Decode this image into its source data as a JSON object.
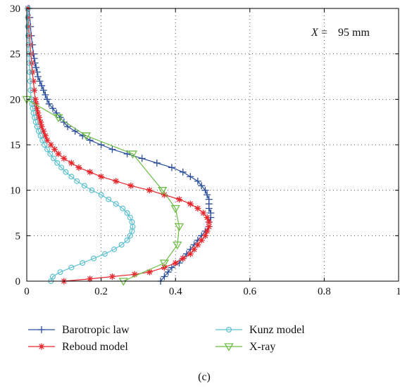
{
  "chart_data": {
    "type": "line",
    "title": "",
    "xlabel": "",
    "ylabel": "",
    "xlim": [
      0,
      1
    ],
    "ylim": [
      0,
      30
    ],
    "xticks": [
      "0",
      "0.2",
      "0.4",
      "0.6",
      "0.8",
      "1"
    ],
    "yticks": [
      "0",
      "5",
      "10",
      "15",
      "20",
      "25",
      "30"
    ],
    "grid": "dotted",
    "annotation": {
      "var": "X",
      "eq": "=",
      "value": "95 mm"
    },
    "caption": "(c)",
    "legend_position": "below",
    "series": [
      {
        "name": "Barotropic law",
        "color": "#2a4d9c",
        "marker": "plus",
        "points": [
          [
            0.36,
            0
          ],
          [
            0.37,
            0.5
          ],
          [
            0.38,
            1
          ],
          [
            0.39,
            1.5
          ],
          [
            0.41,
            2
          ],
          [
            0.42,
            2.5
          ],
          [
            0.43,
            3
          ],
          [
            0.44,
            3.5
          ],
          [
            0.45,
            4
          ],
          [
            0.46,
            4.5
          ],
          [
            0.47,
            5
          ],
          [
            0.48,
            5.5
          ],
          [
            0.49,
            6
          ],
          [
            0.49,
            6.5
          ],
          [
            0.495,
            7
          ],
          [
            0.495,
            7.5
          ],
          [
            0.49,
            8
          ],
          [
            0.49,
            8.5
          ],
          [
            0.49,
            9
          ],
          [
            0.485,
            9.5
          ],
          [
            0.48,
            10
          ],
          [
            0.47,
            10.5
          ],
          [
            0.46,
            11
          ],
          [
            0.44,
            11.5
          ],
          [
            0.42,
            12
          ],
          [
            0.39,
            12.5
          ],
          [
            0.35,
            13
          ],
          [
            0.31,
            13.5
          ],
          [
            0.27,
            14
          ],
          [
            0.23,
            14.5
          ],
          [
            0.2,
            15
          ],
          [
            0.17,
            15.5
          ],
          [
            0.15,
            16
          ],
          [
            0.13,
            16.5
          ],
          [
            0.11,
            17
          ],
          [
            0.1,
            17.5
          ],
          [
            0.09,
            18
          ],
          [
            0.08,
            18.5
          ],
          [
            0.07,
            19
          ],
          [
            0.06,
            19.5
          ],
          [
            0.055,
            20
          ],
          [
            0.05,
            20.5
          ],
          [
            0.045,
            21
          ],
          [
            0.04,
            21.5
          ],
          [
            0.035,
            22
          ],
          [
            0.03,
            22.5
          ],
          [
            0.028,
            23
          ],
          [
            0.025,
            23.5
          ],
          [
            0.022,
            24
          ],
          [
            0.02,
            24.5
          ],
          [
            0.018,
            25
          ],
          [
            0.015,
            26
          ],
          [
            0.012,
            27
          ],
          [
            0.01,
            28
          ],
          [
            0.008,
            29
          ],
          [
            0.006,
            30
          ]
        ]
      },
      {
        "name": "Reboud model",
        "color": "#e8262b",
        "marker": "star",
        "points": [
          [
            0.1,
            0
          ],
          [
            0.17,
            0.25
          ],
          [
            0.23,
            0.5
          ],
          [
            0.29,
            0.75
          ],
          [
            0.33,
            1
          ],
          [
            0.37,
            1.5
          ],
          [
            0.4,
            2
          ],
          [
            0.42,
            2.5
          ],
          [
            0.44,
            3
          ],
          [
            0.45,
            3.5
          ],
          [
            0.46,
            4
          ],
          [
            0.47,
            4.5
          ],
          [
            0.48,
            5
          ],
          [
            0.485,
            5.5
          ],
          [
            0.49,
            6
          ],
          [
            0.49,
            6.5
          ],
          [
            0.485,
            7
          ],
          [
            0.475,
            7.5
          ],
          [
            0.46,
            8
          ],
          [
            0.44,
            8.5
          ],
          [
            0.41,
            9
          ],
          [
            0.37,
            9.5
          ],
          [
            0.33,
            10
          ],
          [
            0.28,
            10.5
          ],
          [
            0.24,
            11
          ],
          [
            0.2,
            11.5
          ],
          [
            0.17,
            12
          ],
          [
            0.14,
            12.5
          ],
          [
            0.12,
            13
          ],
          [
            0.1,
            13.5
          ],
          [
            0.085,
            14
          ],
          [
            0.075,
            14.5
          ],
          [
            0.065,
            15
          ],
          [
            0.055,
            15.5
          ],
          [
            0.05,
            16
          ],
          [
            0.045,
            16.5
          ],
          [
            0.04,
            17
          ],
          [
            0.037,
            17.5
          ],
          [
            0.033,
            18
          ],
          [
            0.03,
            18.5
          ],
          [
            0.027,
            19
          ],
          [
            0.025,
            19.5
          ],
          [
            0.023,
            20
          ],
          [
            0.02,
            21
          ],
          [
            0.018,
            22
          ],
          [
            0.015,
            23
          ],
          [
            0.013,
            24
          ],
          [
            0.011,
            25
          ],
          [
            0.009,
            26
          ],
          [
            0.007,
            27
          ],
          [
            0.005,
            28
          ],
          [
            0.004,
            29
          ],
          [
            0.003,
            30
          ]
        ]
      },
      {
        "name": "Kunz model",
        "color": "#5bc0d0",
        "marker": "circle",
        "points": [
          [
            0.065,
            0
          ],
          [
            0.07,
            0.5
          ],
          [
            0.09,
            1
          ],
          [
            0.12,
            1.5
          ],
          [
            0.15,
            2
          ],
          [
            0.18,
            2.5
          ],
          [
            0.21,
            3
          ],
          [
            0.235,
            3.5
          ],
          [
            0.255,
            4
          ],
          [
            0.27,
            4.5
          ],
          [
            0.278,
            5
          ],
          [
            0.283,
            5.5
          ],
          [
            0.285,
            6
          ],
          [
            0.283,
            6.5
          ],
          [
            0.278,
            7
          ],
          [
            0.27,
            7.5
          ],
          [
            0.258,
            8
          ],
          [
            0.24,
            8.5
          ],
          [
            0.22,
            9
          ],
          [
            0.2,
            9.5
          ],
          [
            0.175,
            10
          ],
          [
            0.155,
            10.5
          ],
          [
            0.135,
            11
          ],
          [
            0.12,
            11.5
          ],
          [
            0.105,
            12
          ],
          [
            0.093,
            12.5
          ],
          [
            0.082,
            13
          ],
          [
            0.072,
            13.5
          ],
          [
            0.063,
            14
          ],
          [
            0.055,
            14.5
          ],
          [
            0.048,
            15
          ],
          [
            0.042,
            15.5
          ],
          [
            0.037,
            16
          ],
          [
            0.032,
            16.5
          ],
          [
            0.028,
            17
          ],
          [
            0.024,
            17.5
          ],
          [
            0.021,
            18
          ],
          [
            0.018,
            18.5
          ],
          [
            0.016,
            19
          ],
          [
            0.014,
            19.5
          ],
          [
            0.012,
            20
          ],
          [
            0.01,
            21
          ],
          [
            0.009,
            22
          ],
          [
            0.008,
            23
          ],
          [
            0.007,
            24
          ],
          [
            0.006,
            25
          ],
          [
            0.005,
            26
          ],
          [
            0.004,
            27
          ],
          [
            0.003,
            28
          ],
          [
            0.003,
            29
          ],
          [
            0.003,
            30
          ]
        ]
      },
      {
        "name": "X-ray",
        "color": "#6dbd45",
        "marker": "triangle-down",
        "points": [
          [
            0.26,
            0
          ],
          [
            0.37,
            2
          ],
          [
            0.405,
            4
          ],
          [
            0.41,
            6
          ],
          [
            0.4,
            8
          ],
          [
            0.365,
            10
          ],
          [
            0.285,
            14
          ],
          [
            0.16,
            16
          ],
          [
            0.085,
            18
          ],
          [
            0.0,
            20
          ]
        ]
      }
    ]
  }
}
